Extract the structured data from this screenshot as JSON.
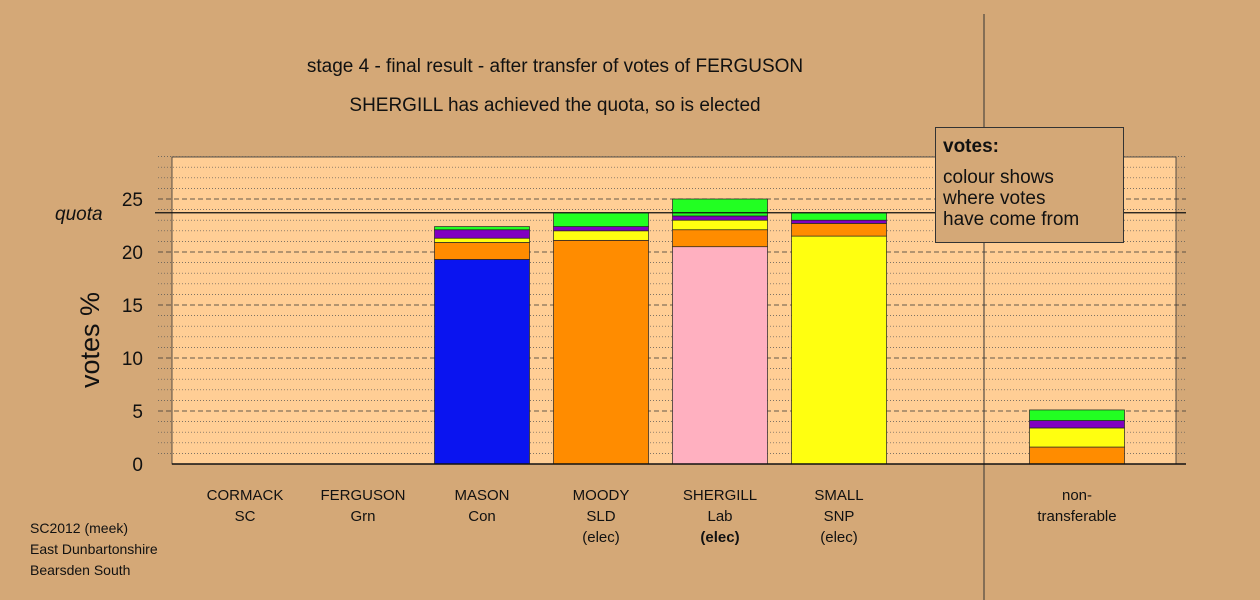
{
  "header": {
    "title": "stage 4 - final result - after transfer of votes of FERGUSON",
    "subtitle": "SHERGILL has achieved the quota, so is elected"
  },
  "legend": {
    "heading": "votes:",
    "lines": [
      "colour shows",
      "where votes",
      "have come from"
    ]
  },
  "footer": {
    "lines": [
      "SC2012 (meek)",
      "East Dunbartonshire",
      "Bearsden South"
    ]
  },
  "colors": {
    "background": "#d4a877",
    "plot_area": "#ffce95",
    "Con": "#0a14f0",
    "SLD": "#ff8c00",
    "Lab": "#ffb0c0",
    "SNP": "#ffff10",
    "UKIP": "#8000c0",
    "Grn": "#22ff22"
  },
  "chart_data": {
    "type": "bar",
    "stacked": true,
    "ylabel": "votes %",
    "ylim": [
      0,
      29
    ],
    "yticks": [
      0,
      5,
      10,
      15,
      20,
      25
    ],
    "quota": 23.7,
    "quota_label": "quota",
    "grid": true,
    "categories": [
      {
        "name": "CORMACK",
        "party": "SC",
        "status": ""
      },
      {
        "name": "FERGUSON",
        "party": "Grn",
        "status": ""
      },
      {
        "name": "MASON",
        "party": "Con",
        "status": ""
      },
      {
        "name": "MOODY",
        "party": "SLD",
        "status": "(elec)"
      },
      {
        "name": "SHERGILL",
        "party": "Lab",
        "status": "(elec)"
      },
      {
        "name": "SMALL",
        "party": "SNP",
        "status": "(elec)"
      },
      {
        "name": "non-",
        "party": "transferable",
        "status": ""
      }
    ],
    "bars": [
      [],
      [],
      [
        {
          "source": "Con",
          "value": 19.3
        },
        {
          "source": "SLD",
          "value": 1.6
        },
        {
          "source": "SNP",
          "value": 0.4
        },
        {
          "source": "UKIP",
          "value": 0.8
        },
        {
          "source": "Grn",
          "value": 0.3
        }
      ],
      [
        {
          "source": "SLD",
          "value": 21.1
        },
        {
          "source": "SNP",
          "value": 0.9
        },
        {
          "source": "UKIP",
          "value": 0.4
        },
        {
          "source": "Grn",
          "value": 1.3
        }
      ],
      [
        {
          "source": "Lab",
          "value": 20.5
        },
        {
          "source": "SLD",
          "value": 1.6
        },
        {
          "source": "SNP",
          "value": 0.9
        },
        {
          "source": "UKIP",
          "value": 0.4
        },
        {
          "source": "Grn",
          "value": 1.6
        }
      ],
      [
        {
          "source": "SNP",
          "value": 21.5
        },
        {
          "source": "SLD",
          "value": 1.2
        },
        {
          "source": "UKIP",
          "value": 0.3
        },
        {
          "source": "Grn",
          "value": 0.7
        }
      ],
      [
        {
          "source": "SLD",
          "value": 1.6
        },
        {
          "source": "SNP",
          "value": 1.8
        },
        {
          "source": "UKIP",
          "value": 0.7
        },
        {
          "source": "Grn",
          "value": 1.0
        }
      ]
    ]
  }
}
